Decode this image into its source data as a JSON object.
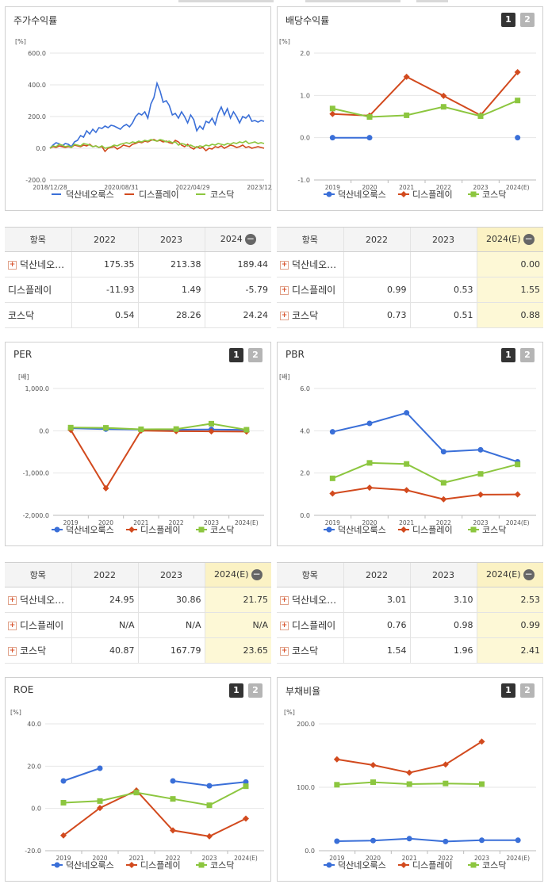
{
  "panels": {
    "stock": {
      "title": "주가수익률"
    },
    "dividend": {
      "title": "배당수익률",
      "page1": "1",
      "page2": "2"
    },
    "per": {
      "title": "PER",
      "page1": "1",
      "page2": "2"
    },
    "pbr": {
      "title": "PBR",
      "page1": "1",
      "page2": "2"
    },
    "roe": {
      "title": "ROE",
      "page1": "1",
      "page2": "2"
    },
    "debt": {
      "title": "부채비율",
      "page1": "1",
      "page2": "2"
    }
  },
  "colors": {
    "s1": "#3a6fd8",
    "s2": "#d24a1e",
    "s3": "#8cc63f"
  },
  "tables": {
    "stock": {
      "headers": [
        "항목",
        "2022",
        "2023",
        "2024"
      ],
      "rows": [
        {
          "name": "덕산네오…",
          "plus": true,
          "values": [
            "175.35",
            "213.38",
            "189.44"
          ]
        },
        {
          "name": "디스플레이",
          "plus": false,
          "values": [
            "-11.93",
            "1.49",
            "-5.79"
          ]
        },
        {
          "name": "코스닥",
          "plus": false,
          "values": [
            "0.54",
            "28.26",
            "24.24"
          ]
        }
      ]
    },
    "dividend": {
      "headers": [
        "항목",
        "2022",
        "2023",
        "2024(E)"
      ],
      "rows": [
        {
          "name": "덕산네오…",
          "plus": true,
          "values": [
            "",
            "",
            "0.00"
          ]
        },
        {
          "name": "디스플레이",
          "plus": true,
          "values": [
            "0.99",
            "0.53",
            "1.55"
          ]
        },
        {
          "name": "코스닥",
          "plus": true,
          "values": [
            "0.73",
            "0.51",
            "0.88"
          ]
        }
      ]
    },
    "per": {
      "headers": [
        "항목",
        "2022",
        "2023",
        "2024(E)"
      ],
      "rows": [
        {
          "name": "덕산네오…",
          "plus": true,
          "values": [
            "24.95",
            "30.86",
            "21.75"
          ]
        },
        {
          "name": "디스플레이",
          "plus": true,
          "values": [
            "N/A",
            "N/A",
            "N/A"
          ]
        },
        {
          "name": "코스닥",
          "plus": true,
          "values": [
            "40.87",
            "167.79",
            "23.65"
          ]
        }
      ]
    },
    "pbr": {
      "headers": [
        "항목",
        "2022",
        "2023",
        "2024(E)"
      ],
      "rows": [
        {
          "name": "덕산네오…",
          "plus": true,
          "values": [
            "3.01",
            "3.10",
            "2.53"
          ]
        },
        {
          "name": "디스플레이",
          "plus": true,
          "values": [
            "0.76",
            "0.98",
            "0.99"
          ]
        },
        {
          "name": "코스닥",
          "plus": true,
          "values": [
            "1.54",
            "1.96",
            "2.41"
          ]
        }
      ]
    }
  },
  "chart_data": [
    {
      "id": "stock",
      "type": "line",
      "title": "주가수익률",
      "unit": "[%]",
      "ylim": [
        -200,
        600
      ],
      "yticks": [
        "600.0",
        "400.0",
        "200.0",
        "0.0",
        "-200.0"
      ],
      "xticks": [
        "2018/12/28",
        "2020/08/31",
        "2022/04/29",
        "2023/12/28"
      ],
      "series": [
        {
          "name": "덕산네오룩스",
          "values": [
            0,
            20,
            35,
            28,
            15,
            30,
            25,
            10,
            40,
            50,
            80,
            70,
            110,
            90,
            120,
            100,
            130,
            125,
            140,
            130,
            145,
            140,
            130,
            120,
            140,
            150,
            135,
            160,
            200,
            220,
            210,
            230,
            190,
            280,
            320,
            410,
            360,
            290,
            300,
            270,
            210,
            220,
            190,
            230,
            200,
            160,
            210,
            180,
            110,
            140,
            120,
            170,
            160,
            190,
            150,
            220,
            260,
            210,
            250,
            190,
            230,
            200,
            160,
            200,
            190,
            210,
            170,
            175,
            165,
            175,
            170
          ]
        },
        {
          "name": "디스플레이",
          "values": [
            0,
            10,
            5,
            15,
            10,
            5,
            10,
            5,
            20,
            15,
            10,
            20,
            15,
            25,
            10,
            15,
            5,
            10,
            -20,
            0,
            5,
            10,
            -5,
            5,
            20,
            15,
            10,
            25,
            30,
            40,
            35,
            45,
            40,
            50,
            55,
            45,
            50,
            40,
            45,
            35,
            30,
            50,
            40,
            20,
            10,
            25,
            5,
            -5,
            10,
            0,
            5,
            -15,
            0,
            -5,
            10,
            5,
            15,
            0,
            10,
            20,
            15,
            5,
            10,
            20,
            5,
            10,
            0,
            5,
            10,
            5,
            0
          ]
        },
        {
          "name": "코스닥",
          "values": [
            0,
            15,
            10,
            25,
            20,
            10,
            15,
            5,
            25,
            20,
            15,
            30,
            25,
            20,
            10,
            15,
            5,
            15,
            0,
            5,
            10,
            20,
            15,
            25,
            30,
            35,
            30,
            40,
            35,
            45,
            40,
            50,
            45,
            55,
            50,
            45,
            55,
            50,
            40,
            45,
            35,
            40,
            20,
            30,
            25,
            15,
            20,
            10,
            5,
            15,
            10,
            20,
            15,
            25,
            20,
            30,
            25,
            20,
            30,
            25,
            35,
            30,
            40,
            35,
            45,
            30,
            35,
            40,
            30,
            35,
            30
          ]
        }
      ]
    },
    {
      "id": "dividend",
      "type": "line",
      "title": "배당수익률",
      "unit": "[%]",
      "ylim": [
        -1,
        2
      ],
      "yticks": [
        "2.0",
        "1.0",
        "0.0",
        "-1.0"
      ],
      "categories": [
        "2019",
        "2020",
        "2021",
        "2022",
        "2023",
        "2024(E)"
      ],
      "series": [
        {
          "name": "덕산네오룩스",
          "values": [
            0.0,
            0.0,
            null,
            null,
            null,
            0.0
          ]
        },
        {
          "name": "디스플레이",
          "values": [
            0.56,
            0.52,
            1.44,
            0.99,
            0.53,
            1.55
          ]
        },
        {
          "name": "코스닥",
          "values": [
            0.69,
            0.49,
            0.53,
            0.73,
            0.51,
            0.88
          ]
        }
      ]
    },
    {
      "id": "per",
      "type": "line",
      "title": "PER",
      "unit": "[배]",
      "ylim": [
        -2000,
        1000
      ],
      "yticks": [
        "1,000.0",
        "0.0",
        "-1,000.0",
        "-2,000.0"
      ],
      "categories": [
        "2019",
        "2020",
        "2021",
        "2022",
        "2023",
        "2024(E)"
      ],
      "series": [
        {
          "name": "덕산네오룩스",
          "values": [
            60,
            40,
            30,
            24.95,
            30.86,
            21.75
          ]
        },
        {
          "name": "디스플레이",
          "values": [
            20,
            -1360,
            5,
            -10,
            -15,
            -20
          ]
        },
        {
          "name": "코스닥",
          "values": [
            75,
            70,
            35,
            40.87,
            167.79,
            23.65
          ]
        }
      ]
    },
    {
      "id": "pbr",
      "type": "line",
      "title": "PBR",
      "unit": "[배]",
      "ylim": [
        0,
        6
      ],
      "yticks": [
        "6.0",
        "4.0",
        "2.0",
        "0.0"
      ],
      "categories": [
        "2019",
        "2020",
        "2021",
        "2022",
        "2023",
        "2024(E)"
      ],
      "series": [
        {
          "name": "덕산네오룩스",
          "values": [
            3.95,
            4.35,
            4.85,
            3.01,
            3.1,
            2.53
          ]
        },
        {
          "name": "디스플레이",
          "values": [
            1.03,
            1.31,
            1.19,
            0.76,
            0.98,
            0.99
          ]
        },
        {
          "name": "코스닥",
          "values": [
            1.75,
            2.48,
            2.43,
            1.54,
            1.96,
            2.41
          ]
        }
      ]
    },
    {
      "id": "roe",
      "type": "line",
      "title": "ROE",
      "unit": "[%]",
      "ylim": [
        -20,
        40
      ],
      "yticks": [
        "40.0",
        "20.0",
        "0.0",
        "-20.0"
      ],
      "categories": [
        "2019",
        "2020",
        "2021",
        "2022",
        "2023",
        "2024(E)"
      ],
      "series": [
        {
          "name": "덕산네오룩스",
          "values": [
            13.0,
            19.0,
            null,
            13.0,
            10.7,
            12.5
          ]
        },
        {
          "name": "디스플레이",
          "values": [
            -12.8,
            0.2,
            8.5,
            -10.4,
            -13.2,
            -4.8
          ]
        },
        {
          "name": "코스닥",
          "values": [
            2.7,
            3.5,
            7.5,
            4.5,
            1.5,
            10.5
          ]
        }
      ]
    },
    {
      "id": "debt",
      "type": "line",
      "title": "부채비율",
      "unit": "[%]",
      "ylim": [
        0,
        200
      ],
      "yticks": [
        "200.0",
        "100.0",
        "0.0"
      ],
      "categories": [
        "2019",
        "2020",
        "2021",
        "2022",
        "2023",
        "2024(E)"
      ],
      "series": [
        {
          "name": "덕산네오룩스",
          "values": [
            15.0,
            16.0,
            19.0,
            14.5,
            16.5,
            16.5
          ]
        },
        {
          "name": "디스플레이",
          "values": [
            144,
            135,
            123,
            136,
            172,
            null
          ]
        },
        {
          "name": "코스닥",
          "values": [
            104,
            108,
            105,
            106,
            105,
            null
          ]
        }
      ]
    }
  ]
}
